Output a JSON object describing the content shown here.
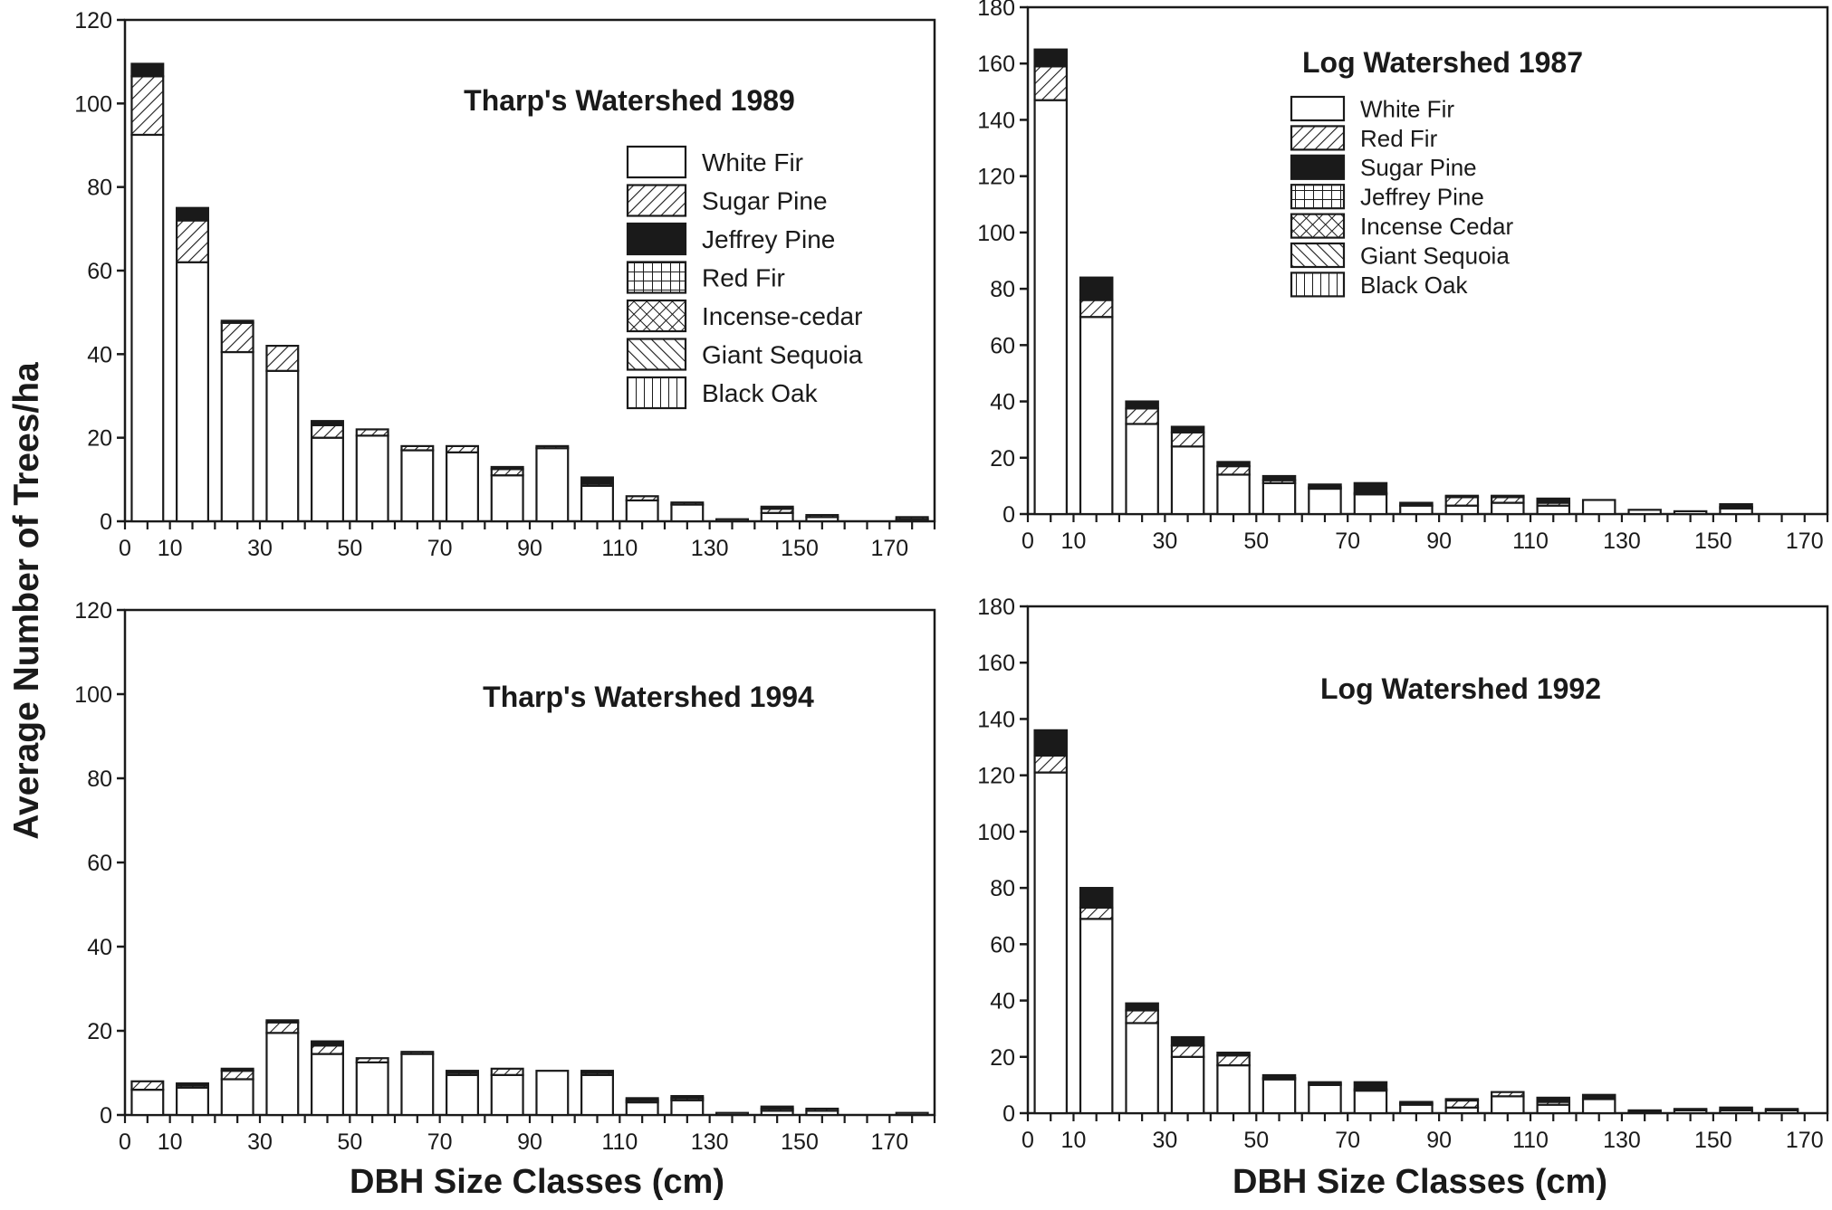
{
  "figure": {
    "ylabel": "Average Number of Trees/ha",
    "xlabel_left": "DBH Size Classes (cm)",
    "xlabel_right": "DBH Size Classes (cm)"
  },
  "chart_data": [
    {
      "type": "bar",
      "stacked": true,
      "title": "Tharp's Watershed 1989",
      "ylim": [
        0,
        120
      ],
      "yticks": [
        0,
        20,
        40,
        60,
        80,
        100,
        120
      ],
      "xticks": [
        0,
        10,
        30,
        50,
        70,
        90,
        110,
        130,
        150,
        170
      ],
      "categories": [
        5,
        15,
        25,
        35,
        45,
        55,
        65,
        75,
        85,
        95,
        105,
        115,
        125,
        135,
        145,
        155,
        165,
        175
      ],
      "legend": [
        {
          "name": "White Fir",
          "pattern": "white"
        },
        {
          "name": "Sugar Pine",
          "pattern": "diag"
        },
        {
          "name": "Jeffrey Pine",
          "pattern": "black"
        },
        {
          "name": "Red Fir",
          "pattern": "grid"
        },
        {
          "name": "Incense-cedar",
          "pattern": "cross"
        },
        {
          "name": "Giant Sequoia",
          "pattern": "backdiag"
        },
        {
          "name": "Black Oak",
          "pattern": "vert"
        }
      ],
      "legend_position": "upper-right",
      "series": [
        {
          "name": "White Fir",
          "pattern": "white",
          "values": [
            92.5,
            62,
            40.5,
            36,
            20,
            20.5,
            17,
            16.5,
            11,
            17.5,
            8.5,
            5,
            4,
            0.5,
            2,
            1,
            0,
            0.5
          ]
        },
        {
          "name": "Sugar Pine",
          "pattern": "diag",
          "values": [
            14,
            10,
            7,
            6,
            3,
            1.5,
            1,
            1.5,
            1.5,
            0.5,
            0.5,
            1,
            0.5,
            0,
            1,
            0.5,
            0,
            0.5
          ]
        },
        {
          "name": "Jeffrey Pine",
          "pattern": "black",
          "values": [
            3,
            3,
            0.5,
            0,
            1,
            0,
            0,
            0,
            0.5,
            0,
            1.5,
            0,
            0,
            0,
            0.5,
            0,
            0,
            0
          ]
        }
      ]
    },
    {
      "type": "bar",
      "stacked": true,
      "title": "Log Watershed 1987",
      "ylim": [
        0,
        180
      ],
      "yticks": [
        0,
        20,
        40,
        60,
        80,
        100,
        120,
        140,
        160,
        180
      ],
      "xticks": [
        0,
        10,
        30,
        50,
        70,
        90,
        110,
        130,
        150,
        170
      ],
      "categories": [
        5,
        15,
        25,
        35,
        45,
        55,
        65,
        75,
        85,
        95,
        105,
        115,
        125,
        135,
        145,
        155,
        165
      ],
      "legend": [
        {
          "name": "White Fir",
          "pattern": "white"
        },
        {
          "name": "Red Fir",
          "pattern": "diag"
        },
        {
          "name": "Sugar Pine",
          "pattern": "black"
        },
        {
          "name": "Jeffrey Pine",
          "pattern": "grid"
        },
        {
          "name": "Incense Cedar",
          "pattern": "cross"
        },
        {
          "name": "Giant Sequoia",
          "pattern": "backdiag"
        },
        {
          "name": "Black Oak",
          "pattern": "vert"
        }
      ],
      "legend_position": "upper-center",
      "series": [
        {
          "name": "White Fir",
          "pattern": "white",
          "values": [
            147,
            70,
            32,
            24,
            14,
            11,
            9,
            7,
            3,
            3,
            4,
            3,
            5,
            1.5,
            1,
            2,
            0
          ]
        },
        {
          "name": "Red Fir",
          "pattern": "diag",
          "values": [
            12,
            6,
            5.5,
            5,
            3,
            1,
            0.5,
            0.5,
            0,
            3,
            2,
            1,
            0,
            0,
            0,
            0.5,
            0
          ]
        },
        {
          "name": "Sugar Pine",
          "pattern": "black",
          "values": [
            6,
            8,
            2.5,
            2,
            1.5,
            1.5,
            1,
            3.5,
            1,
            0.5,
            0.5,
            1.5,
            0,
            0,
            0,
            1,
            0
          ]
        }
      ]
    },
    {
      "type": "bar",
      "stacked": true,
      "title": "Tharp's Watershed 1994",
      "ylim": [
        0,
        120
      ],
      "yticks": [
        0,
        20,
        40,
        60,
        80,
        100,
        120
      ],
      "xticks": [
        0,
        10,
        30,
        50,
        70,
        90,
        110,
        130,
        150,
        170
      ],
      "categories": [
        5,
        15,
        25,
        35,
        45,
        55,
        65,
        75,
        85,
        95,
        105,
        115,
        125,
        135,
        145,
        155,
        165,
        175
      ],
      "series": [
        {
          "name": "White Fir",
          "pattern": "white",
          "values": [
            6,
            6.5,
            8.5,
            19.5,
            14.5,
            12.5,
            14.5,
            9.5,
            9.5,
            10.5,
            9.5,
            3,
            3.5,
            0.5,
            1,
            1,
            0,
            0.5
          ]
        },
        {
          "name": "Sugar Pine",
          "pattern": "diag",
          "values": [
            2,
            0.5,
            2,
            2.5,
            2,
            1,
            0.5,
            0.5,
            1.5,
            0,
            0.5,
            0.5,
            0.5,
            0,
            0.5,
            0.5,
            0,
            0
          ]
        },
        {
          "name": "Jeffrey Pine",
          "pattern": "black",
          "values": [
            0,
            0.5,
            0.5,
            0.5,
            1,
            0,
            0,
            0.5,
            0,
            0,
            0.5,
            0.5,
            0.5,
            0,
            0.5,
            0,
            0,
            0
          ]
        }
      ]
    },
    {
      "type": "bar",
      "stacked": true,
      "title": "Log Watershed 1992",
      "ylim": [
        0,
        180
      ],
      "yticks": [
        0,
        20,
        40,
        60,
        80,
        100,
        120,
        140,
        160,
        180
      ],
      "xticks": [
        0,
        10,
        30,
        50,
        70,
        90,
        110,
        130,
        150,
        170
      ],
      "categories": [
        5,
        15,
        25,
        35,
        45,
        55,
        65,
        75,
        85,
        95,
        105,
        115,
        125,
        135,
        145,
        155,
        165
      ],
      "series": [
        {
          "name": "White Fir",
          "pattern": "white",
          "values": [
            121,
            69,
            32,
            20,
            17,
            12,
            10,
            8,
            3,
            2,
            6,
            3,
            5,
            0.5,
            1,
            1,
            1
          ]
        },
        {
          "name": "Red Fir",
          "pattern": "diag",
          "values": [
            6,
            4,
            4.5,
            4,
            3.5,
            0.5,
            0.5,
            0.5,
            0.5,
            2.5,
            1.5,
            1,
            0,
            0,
            0,
            0,
            0
          ]
        },
        {
          "name": "Sugar Pine",
          "pattern": "black",
          "values": [
            9,
            7,
            2.5,
            3,
            1,
            1,
            0.5,
            2.5,
            0.5,
            0.5,
            0,
            1.5,
            1.5,
            0.5,
            0.5,
            1,
            0.5
          ]
        }
      ]
    }
  ]
}
